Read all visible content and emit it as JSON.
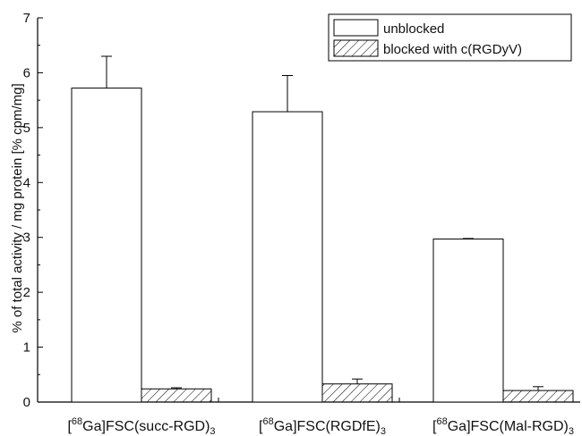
{
  "chart_data": {
    "type": "bar",
    "categories": [
      {
        "pre": "[",
        "sup": "68",
        "main": "Ga]FSC(succ-RGD)",
        "sub": "3"
      },
      {
        "pre": "[",
        "sup": "68",
        "main": "Ga]FSC(RGDfE)",
        "sub": "3"
      },
      {
        "pre": "[",
        "sup": "68",
        "main": "Ga]FSC(Mal-RGD)",
        "sub": "3"
      }
    ],
    "series": [
      {
        "name": "unblocked",
        "pattern": "none",
        "values": [
          5.72,
          5.29,
          2.97
        ],
        "errors": [
          0.58,
          0.66,
          0.01
        ]
      },
      {
        "name": "blocked with c(RGDyV)",
        "pattern": "hatch",
        "values": [
          0.24,
          0.33,
          0.21
        ],
        "errors": [
          0.02,
          0.09,
          0.07
        ]
      }
    ],
    "ylabel": "% of total activity / mg protein [% cpm/mg]",
    "ylim": [
      0,
      7
    ],
    "yticks": [
      0,
      1,
      2,
      3,
      4,
      5,
      6,
      7
    ],
    "grid": false,
    "legend_position": "top-right",
    "colors": {
      "stroke": "#000000",
      "fill": "#ffffff",
      "hatch": "#000000"
    }
  }
}
